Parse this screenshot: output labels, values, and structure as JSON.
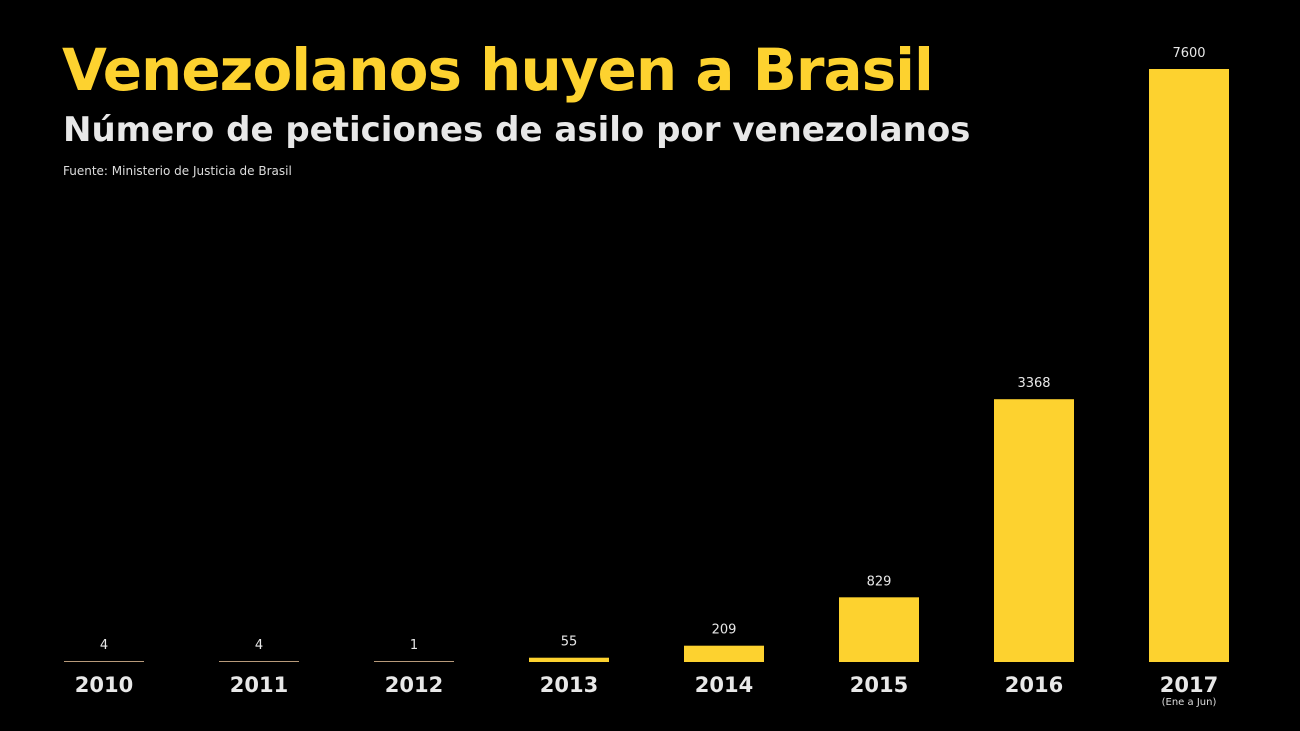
{
  "chart_data": {
    "type": "bar",
    "title": "Venezolanos huyen a Brasil",
    "subtitle": "Número de peticiones de asilo por venezolanos",
    "source": "Fuente: Ministerio de Justicia de Brasil",
    "categories": [
      "2010",
      "2011",
      "2012",
      "2013",
      "2014",
      "2015",
      "2016",
      "2017"
    ],
    "category_notes": {
      "2017": "(Ene a Jun)"
    },
    "values": [
      4,
      4,
      1,
      55,
      209,
      829,
      3368,
      7600
    ],
    "ylim": [
      0,
      7600
    ],
    "grid": false,
    "colors": {
      "bar": "#fdd22f",
      "tiny_bar": "#b89a7a",
      "label": "#e8e8e8"
    }
  }
}
